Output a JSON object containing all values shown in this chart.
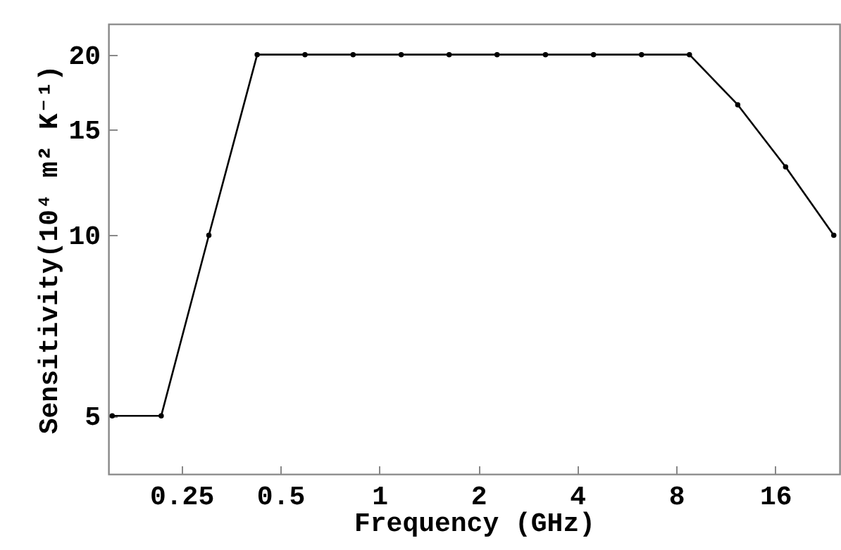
{
  "chart_data": {
    "type": "line",
    "xlabel": "Frequency (GHz)",
    "ylabel": "Sensitivity(10⁴ m² K⁻¹)",
    "x": [
      0.154,
      0.217,
      0.303,
      0.425,
      0.594,
      0.832,
      1.165,
      1.63,
      2.28,
      3.2,
      4.48,
      6.27,
      8.77,
      12.3,
      17.2,
      24.1
    ],
    "series": [
      {
        "color": "#000000",
        "values": [
          5,
          5,
          10,
          20,
          20,
          20,
          20,
          20,
          20,
          20,
          20,
          20,
          20,
          16.5,
          13,
          10
        ]
      }
    ],
    "log": "xy",
    "xlim": [
      0.15,
      25.1
    ],
    "ylim": [
      4.0,
      22.5
    ],
    "xticks": [
      0.25,
      0.5,
      1,
      2,
      4,
      8,
      16
    ],
    "yticks": [
      5,
      10,
      15,
      20
    ],
    "grid": false,
    "marker": "circle",
    "line_style": "solid"
  }
}
